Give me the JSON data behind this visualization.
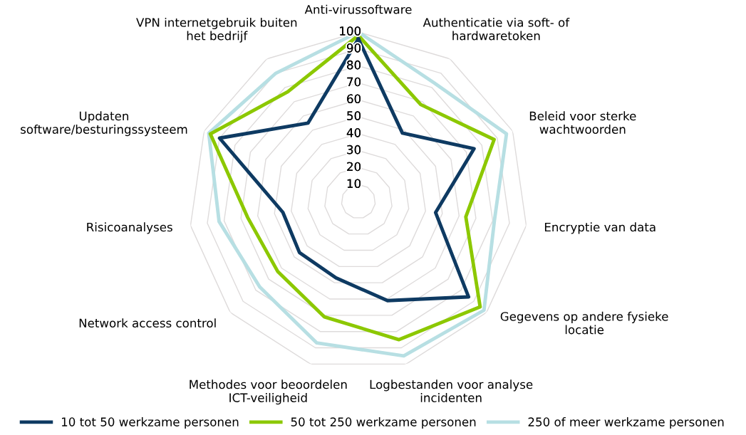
{
  "chart_data": {
    "type": "radar",
    "categories": [
      "Anti-virussoftware",
      "Authenticatie via soft- of hardwaretoken",
      "Beleid voor sterke wachtwoorden",
      "Encryptie van data",
      "Gegevens op andere fysieke locatie",
      "Logbestanden voor analyse incidenten",
      "Methodes voor beoordelen ICT-veiligheid",
      "Network access control",
      "Risicoanalyses",
      "Updaten software/besturingssysteem",
      "VPN internetgebruik buiten het bedrijf"
    ],
    "series": [
      {
        "name": "10 tot 50 werkzame personen",
        "color": "#0e3a62",
        "values": [
          96,
          48,
          75,
          46,
          86,
          61,
          47,
          46,
          45,
          90,
          55
        ]
      },
      {
        "name": "50 tot 250 werkzame personen",
        "color": "#8cc800",
        "values": [
          98,
          68,
          88,
          64,
          95,
          85,
          71,
          63,
          66,
          96,
          77
        ]
      },
      {
        "name": "250 of meer werkzame personen",
        "color": "#b7dfe3",
        "values": [
          100,
          83,
          96,
          81,
          98,
          95,
          87,
          77,
          83,
          97,
          90
        ]
      }
    ],
    "ylim": [
      0,
      100
    ],
    "yticks": [
      10,
      20,
      30,
      40,
      50,
      60,
      70,
      80,
      90,
      100
    ],
    "grid": true,
    "legend": "bottom",
    "marker": "none",
    "line_style": "solid"
  }
}
